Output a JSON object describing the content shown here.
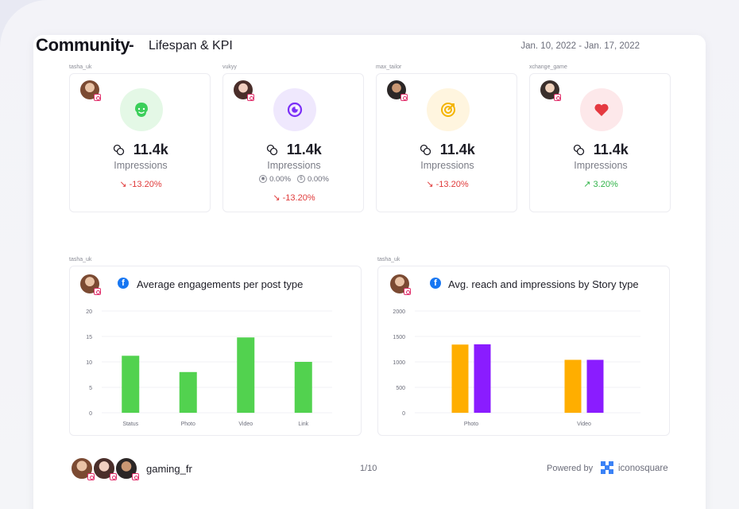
{
  "header": {
    "title": "Community",
    "dash": "-",
    "subtitle": "Lifespan & KPI",
    "date_range": "Jan. 10, 2022 - Jan. 17, 2022"
  },
  "kpis": [
    {
      "owner": "tasha_uk",
      "icon": "smiley-icon",
      "icon_bg": "#e4f8e6",
      "icon_color": "#3bcf5a",
      "value": "11.4k",
      "label": "Impressions",
      "change": "-13.20%",
      "trend": "down"
    },
    {
      "owner": "vukyy",
      "icon": "target-icon",
      "icon_bg": "#efe8fd",
      "icon_color": "#7b2ff7",
      "value": "11.4k",
      "label": "Impressions",
      "stat1": "0.00%",
      "stat2": "0.00%",
      "change": "-13.20%",
      "trend": "down"
    },
    {
      "owner": "max_tailor",
      "icon": "archery-target-icon",
      "icon_bg": "#fff5df",
      "icon_color": "#f4b400",
      "value": "11.4k",
      "label": "Impressions",
      "change": "-13.20%",
      "trend": "down"
    },
    {
      "owner": "xchange_game",
      "icon": "heart-icon",
      "icon_bg": "#fde8ea",
      "icon_color": "#e53940",
      "value": "11.4k",
      "label": "Impressions",
      "change": "3.20%",
      "trend": "up"
    }
  ],
  "charts": [
    {
      "owner": "tasha_uk",
      "title": "Average engagements per post type"
    },
    {
      "owner": "tasha_uk",
      "title": "Avg. reach and impressions by Story type"
    }
  ],
  "chart_data": [
    {
      "type": "bar",
      "title": "Average engagements per post type",
      "categories": [
        "Status",
        "Photo",
        "Video",
        "Link"
      ],
      "values": [
        11.2,
        8,
        14.8,
        10
      ],
      "ylim": [
        0,
        20
      ],
      "yticks": [
        "0",
        "5",
        "10",
        "15",
        "20"
      ],
      "grid": true,
      "color": "#52d24f"
    },
    {
      "type": "bar",
      "title": "Avg. reach and impressions by Story type",
      "categories": [
        "Photo",
        "Video"
      ],
      "series": [
        {
          "values": [
            1340,
            1040
          ],
          "color": "#ffae00"
        },
        {
          "values": [
            1345,
            1040
          ],
          "color": "#8a1cff"
        }
      ],
      "ylim": [
        0,
        2000
      ],
      "yticks": [
        "0",
        "500",
        "1000",
        "1500",
        "2000"
      ],
      "grid": true
    }
  ],
  "footer": {
    "account": "gaming_fr",
    "page": "1/10",
    "powered_by": "Powered by",
    "brand": "iconosquare"
  }
}
